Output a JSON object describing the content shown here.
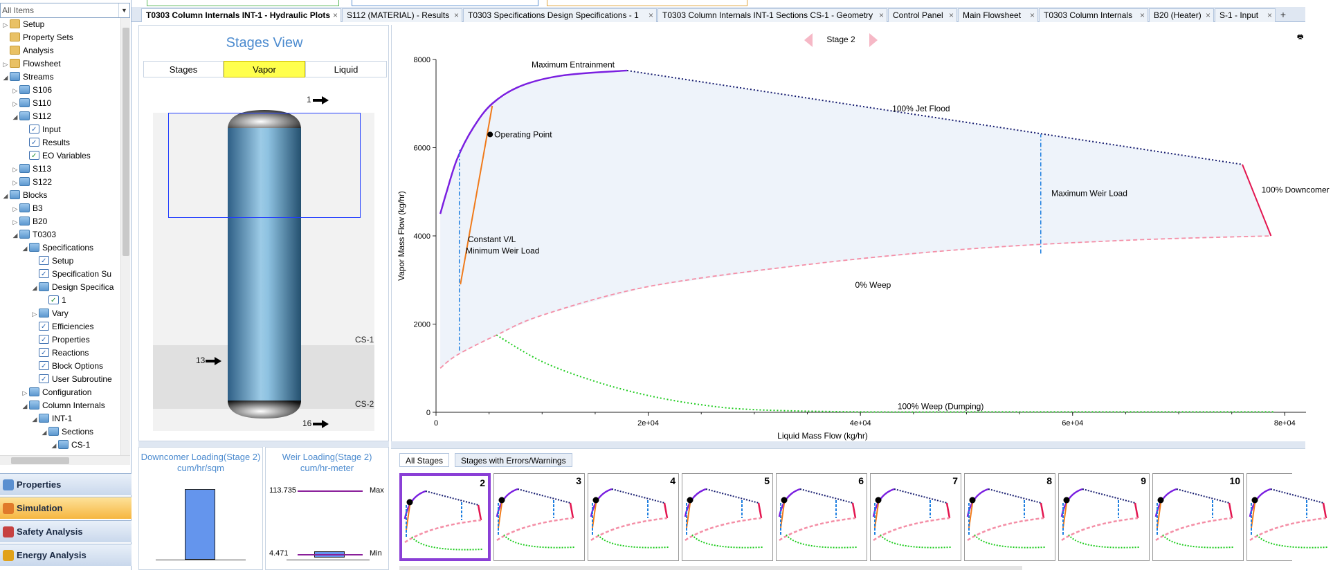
{
  "search": {
    "placeholder": "All Items"
  },
  "tree": [
    {
      "label": "Setup",
      "indent": 0,
      "toggle": "▷",
      "icon": "folder"
    },
    {
      "label": "Property Sets",
      "indent": 0,
      "toggle": "",
      "icon": "folder"
    },
    {
      "label": "Analysis",
      "indent": 0,
      "toggle": "",
      "icon": "folder"
    },
    {
      "label": "Flowsheet",
      "indent": 0,
      "toggle": "▷",
      "icon": "folder"
    },
    {
      "label": "Streams",
      "indent": 0,
      "toggle": "◢",
      "icon": "ofolder"
    },
    {
      "label": "S106",
      "indent": 1,
      "toggle": "▷",
      "icon": "ofolder"
    },
    {
      "label": "S110",
      "indent": 1,
      "toggle": "▷",
      "icon": "ofolder"
    },
    {
      "label": "S112",
      "indent": 1,
      "toggle": "◢",
      "icon": "ofolder"
    },
    {
      "label": "Input",
      "indent": 2,
      "toggle": "",
      "icon": "form"
    },
    {
      "label": "Results",
      "indent": 2,
      "toggle": "",
      "icon": "form"
    },
    {
      "label": "EO Variables",
      "indent": 2,
      "toggle": "",
      "icon": "eo"
    },
    {
      "label": "S113",
      "indent": 1,
      "toggle": "▷",
      "icon": "ofolder"
    },
    {
      "label": "S122",
      "indent": 1,
      "toggle": "▷",
      "icon": "ofolder"
    },
    {
      "label": "Blocks",
      "indent": 0,
      "toggle": "◢",
      "icon": "ofolder"
    },
    {
      "label": "B3",
      "indent": 1,
      "toggle": "▷",
      "icon": "ofolder"
    },
    {
      "label": "B20",
      "indent": 1,
      "toggle": "▷",
      "icon": "ofolder"
    },
    {
      "label": "T0303",
      "indent": 1,
      "toggle": "◢",
      "icon": "ofolder"
    },
    {
      "label": "Specifications",
      "indent": 2,
      "toggle": "◢",
      "icon": "ofolder"
    },
    {
      "label": "Setup",
      "indent": 3,
      "toggle": "",
      "icon": "form"
    },
    {
      "label": "Specification Su",
      "indent": 3,
      "toggle": "",
      "icon": "form"
    },
    {
      "label": "Design Specifica",
      "indent": 3,
      "toggle": "◢",
      "icon": "ofolder"
    },
    {
      "label": "1",
      "indent": 4,
      "toggle": "",
      "icon": "eo"
    },
    {
      "label": "Vary",
      "indent": 3,
      "toggle": "▷",
      "icon": "ofolder"
    },
    {
      "label": "Efficiencies",
      "indent": 3,
      "toggle": "",
      "icon": "form"
    },
    {
      "label": "Properties",
      "indent": 3,
      "toggle": "",
      "icon": "form"
    },
    {
      "label": "Reactions",
      "indent": 3,
      "toggle": "",
      "icon": "form"
    },
    {
      "label": "Block Options",
      "indent": 3,
      "toggle": "",
      "icon": "form"
    },
    {
      "label": "User Subroutine",
      "indent": 3,
      "toggle": "",
      "icon": "form"
    },
    {
      "label": "Configuration",
      "indent": 2,
      "toggle": "▷",
      "icon": "ofolder"
    },
    {
      "label": "Column Internals",
      "indent": 2,
      "toggle": "◢",
      "icon": "ofolder"
    },
    {
      "label": "INT-1",
      "indent": 3,
      "toggle": "◢",
      "icon": "ofolder"
    },
    {
      "label": "Sections",
      "indent": 4,
      "toggle": "◢",
      "icon": "ofolder"
    },
    {
      "label": "CS-1",
      "indent": 5,
      "toggle": "◢",
      "icon": "ofolder"
    }
  ],
  "nav_buttons": [
    {
      "label": "Properties",
      "active": false,
      "color": "#5a8fd0"
    },
    {
      "label": "Simulation",
      "active": true,
      "color": "#e07a2a"
    },
    {
      "label": "Safety Analysis",
      "active": false,
      "color": "#c64141"
    },
    {
      "label": "Energy Analysis",
      "active": false,
      "color": "#e1a21a"
    }
  ],
  "tabs": [
    {
      "label": "T0303 Column Internals INT-1 - Hydraulic Plots",
      "active": true
    },
    {
      "label": "S112 (MATERIAL) - Results",
      "active": false
    },
    {
      "label": "T0303 Specifications Design Specifications - 1",
      "active": false
    },
    {
      "label": "T0303 Column Internals INT-1 Sections CS-1 - Geometry",
      "active": false
    },
    {
      "label": "Control Panel",
      "active": false
    },
    {
      "label": "Main Flowsheet",
      "active": false
    },
    {
      "label": "T0303 Column Internals",
      "active": false
    },
    {
      "label": "B20 (Heater)",
      "active": false
    },
    {
      "label": "S-1 - Input",
      "active": false
    }
  ],
  "stages_view": {
    "title": "Stages View",
    "tabs": [
      {
        "label": "Stages",
        "active": false
      },
      {
        "label": "Vapor",
        "active": true
      },
      {
        "label": "Liquid",
        "active": false
      }
    ],
    "sections": [
      "CS-1",
      "CS-2"
    ],
    "streams": [
      {
        "label": "1"
      },
      {
        "label": "13"
      },
      {
        "label": "16"
      }
    ]
  },
  "downcomer_panel": {
    "title": "Downcomer Loading(Stage 2)",
    "unit": "cum/hr/sqm",
    "fill": 0.85
  },
  "weir_panel": {
    "title": "Weir Loading(Stage 2)",
    "unit": "cum/hr-meter",
    "max_value": "113.735",
    "min_value": "4.471",
    "max_label": "Max",
    "min_label": "Min"
  },
  "stage_nav": {
    "label": "Stage 2"
  },
  "chart_data": {
    "type": "line",
    "xlabel": "Liquid Mass Flow (kg/hr)",
    "ylabel": "Vapor Mass Flow (kg/hr)",
    "xlim": [
      0,
      82000
    ],
    "ylim": [
      0,
      8000
    ],
    "xticks": [
      {
        "v": 0,
        "label": "0"
      },
      {
        "v": 20000,
        "label": "2e+04"
      },
      {
        "v": 40000,
        "label": "4e+04"
      },
      {
        "v": 60000,
        "label": "6e+04"
      },
      {
        "v": 80000,
        "label": "8e+04"
      }
    ],
    "yticks": [
      {
        "v": 0,
        "label": "0"
      },
      {
        "v": 2000,
        "label": "2000"
      },
      {
        "v": 4000,
        "label": "4000"
      },
      {
        "v": 6000,
        "label": "6000"
      },
      {
        "v": 8000,
        "label": "8000"
      }
    ],
    "series": [
      {
        "name": "Maximum Entrainment",
        "color": "#7a1fe0",
        "style": "solid",
        "width": 2.5,
        "points": [
          [
            400,
            4500
          ],
          [
            1000,
            5000
          ],
          [
            2000,
            5750
          ],
          [
            3500,
            6450
          ],
          [
            5300,
            7000
          ],
          [
            8000,
            7400
          ],
          [
            12000,
            7640
          ],
          [
            18000,
            7750
          ]
        ]
      },
      {
        "name": "100% Jet Flood",
        "color": "#141a6e",
        "style": "dotted",
        "width": 2,
        "points": [
          [
            18000,
            7750
          ],
          [
            76000,
            5620
          ]
        ]
      },
      {
        "name": "100% Downcomer",
        "color": "#e3154f",
        "style": "solid",
        "width": 2,
        "points": [
          [
            76000,
            5620
          ],
          [
            78700,
            4000
          ]
        ]
      },
      {
        "name": "0% Weep",
        "color": "#f48ea6",
        "style": "dashed",
        "width": 1.8,
        "points": [
          [
            400,
            1000
          ],
          [
            2000,
            1300
          ],
          [
            5700,
            1750
          ],
          [
            10000,
            2200
          ],
          [
            20000,
            2850
          ],
          [
            35000,
            3350
          ],
          [
            50000,
            3700
          ],
          [
            65000,
            3900
          ],
          [
            78700,
            4000
          ]
        ]
      },
      {
        "name": "100% Weep (Dumping)",
        "color": "#1fcc1f",
        "style": "dotted",
        "width": 2,
        "points": [
          [
            5700,
            1750
          ],
          [
            10000,
            1150
          ],
          [
            15000,
            700
          ],
          [
            20000,
            380
          ],
          [
            25000,
            170
          ],
          [
            30000,
            60
          ],
          [
            40000,
            10
          ],
          [
            55000,
            10
          ],
          [
            79000,
            10
          ]
        ]
      },
      {
        "name": "Constant V/L",
        "color": "#f07a1a",
        "style": "solid",
        "width": 2,
        "points": [
          [
            2300,
            2900
          ],
          [
            5300,
            6950
          ]
        ]
      },
      {
        "name": "Minimum Weir Load",
        "color": "#1e7fe0",
        "style": "dashdot",
        "width": 1.5,
        "points": [
          [
            2200,
            1400
          ],
          [
            2200,
            5950
          ]
        ]
      },
      {
        "name": "Maximum Weir Load",
        "color": "#1e7fe0",
        "style": "dashdot",
        "width": 1.5,
        "points": [
          [
            57000,
            3600
          ],
          [
            57000,
            6300
          ]
        ]
      }
    ],
    "operating_point": {
      "x": 5100,
      "y": 6300,
      "label": "Operating Point"
    },
    "annotations": [
      {
        "text": "Maximum Entrainment",
        "x": 9000,
        "y": 7820
      },
      {
        "text": "100% Jet Flood",
        "x": 43000,
        "y": 6820
      },
      {
        "text": "Maximum Weir Load",
        "x": 58000,
        "y": 4900
      },
      {
        "text": "100% Downcomer",
        "x": 77800,
        "y": 4980
      },
      {
        "text": "Constant V/L",
        "x": 3000,
        "y": 3860
      },
      {
        "text": "Minimum Weir Load",
        "x": 2800,
        "y": 3600
      },
      {
        "text": "0% Weep",
        "x": 39500,
        "y": 2820
      },
      {
        "text": "100% Weep (Dumping)",
        "x": 43500,
        "y": 70
      }
    ]
  },
  "thumb_tabs": [
    {
      "label": "All Stages",
      "active": true
    },
    {
      "label": "Stages with Errors/Warnings",
      "active": false
    }
  ],
  "thumbnails": [
    "2",
    "3",
    "4",
    "5",
    "6",
    "7",
    "8",
    "9",
    "10",
    ""
  ]
}
